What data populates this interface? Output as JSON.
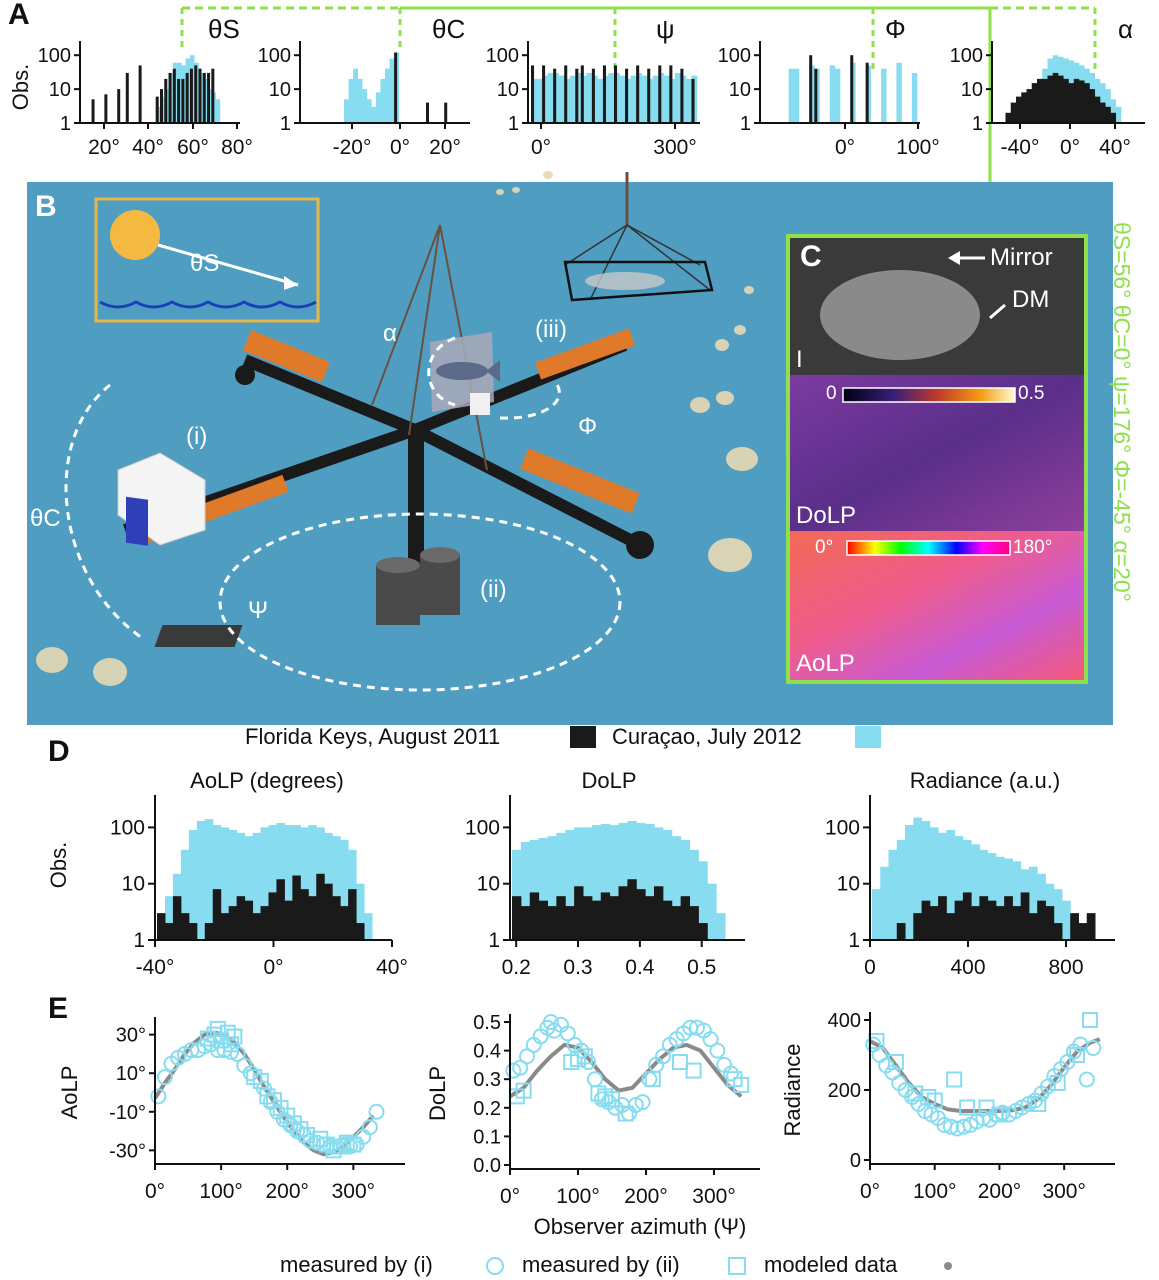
{
  "panel_letters": {
    "a": "A",
    "b": "B",
    "c": "C",
    "d": "D",
    "e": "E"
  },
  "colors": {
    "curacao": "#87dcf0",
    "florida": "#1a1a1a",
    "green": "#8ee04c",
    "water": "#4f9ec2",
    "orange": "#e07a2b",
    "model": "#8a8a8a",
    "inset_border": "#e8b648"
  },
  "panel_a": {
    "ylabel": "Obs.",
    "charts": [
      {
        "symbol": "θS",
        "ticks": [
          "20°",
          "40°",
          "60°",
          "80°"
        ]
      },
      {
        "symbol": "θC",
        "ticks": [
          "-20°",
          "0°",
          "20°"
        ]
      },
      {
        "symbol": "ψ",
        "ticks": [
          "0°",
          "300°"
        ]
      },
      {
        "symbol": "Φ",
        "ticks": [
          "0°",
          "100°"
        ]
      },
      {
        "symbol": "α",
        "ticks": [
          "-40°",
          "0°",
          "40°"
        ]
      }
    ],
    "yticks": [
      "100",
      "10",
      "1"
    ]
  },
  "panel_b": {
    "labels": {
      "theta_s": "θS",
      "theta_c": "θC",
      "psi": "Ψ",
      "phi": "Φ",
      "alpha": "α",
      "i": "(i)",
      "ii": "(ii)",
      "iii": "(iii)"
    }
  },
  "panel_c": {
    "labels": {
      "mirror": "Mirror",
      "dm": "DM",
      "i": "I",
      "dolp": "DoLP",
      "aolp": "AoLP"
    },
    "dolp_scale": [
      "0",
      "0.5"
    ],
    "aolp_scale": [
      "0°",
      "180°"
    ],
    "side_text": "θS=56° θC=0° ψ=176° Φ=-45° α=20°"
  },
  "panel_d": {
    "legend": {
      "florida": "Florida Keys, August 2011",
      "curacao": "Curaçao, July 2012"
    },
    "ylabel": "Obs.",
    "yticks": [
      "100",
      "10",
      "1"
    ],
    "charts": [
      {
        "title": "AoLP (degrees)",
        "ticks": [
          "-40°",
          "0°",
          "40°"
        ]
      },
      {
        "title": "DoLP",
        "ticks": [
          "0.2",
          "0.3",
          "0.4",
          "0.5"
        ]
      },
      {
        "title": "Radiance (a.u.)",
        "ticks": [
          "0",
          "400",
          "800"
        ]
      }
    ]
  },
  "panel_e": {
    "xlabel": "Observer azimuth (Ψ)",
    "legend": {
      "i": "measured by (i)",
      "ii": "measured by (ii)",
      "model": "modeled data"
    }
  },
  "chart_data": [
    {
      "type": "scatter",
      "id": "E-AoLP",
      "ylabel": "AoLP",
      "xlim": [
        0,
        360
      ],
      "ylim": [
        -35,
        35
      ],
      "xticks": [
        "0°",
        "100°",
        "200°",
        "300°"
      ],
      "yticks": [
        "30°",
        "10°",
        "-10°",
        "-30°"
      ],
      "series": [
        {
          "name": "measured by (i)",
          "x": [
            5,
            15,
            25,
            35,
            45,
            55,
            65,
            75,
            85,
            95,
            105,
            115,
            125,
            135,
            145,
            165,
            175,
            185,
            195,
            205,
            215,
            225,
            235,
            245,
            255,
            265,
            275,
            285,
            295,
            305,
            315,
            325,
            335
          ],
          "y": [
            -2,
            8,
            15,
            18,
            20,
            22,
            22,
            24,
            25,
            22,
            22,
            21,
            20,
            14,
            10,
            2,
            -5,
            -10,
            -14,
            -17,
            -20,
            -22,
            -25,
            -26,
            -27,
            -28,
            -28,
            -27,
            -28,
            -27,
            -23,
            -18,
            -10
          ]
        },
        {
          "name": "measured by (ii)",
          "x": [
            80,
            90,
            95,
            100,
            110,
            115,
            120,
            150,
            160,
            170,
            180,
            190,
            200,
            210,
            220,
            230,
            250,
            260,
            270,
            280,
            290,
            300
          ],
          "y": [
            28,
            30,
            33,
            27,
            31,
            25,
            29,
            8,
            6,
            -2,
            -4,
            -8,
            -12,
            -16,
            -19,
            -22,
            -24,
            -27,
            -30,
            -28,
            -26,
            -27
          ]
        },
        {
          "name": "modeled data",
          "x": [
            0,
            15,
            30,
            45,
            60,
            75,
            90,
            105,
            120,
            135,
            150,
            165,
            180,
            195,
            210,
            225,
            240,
            255,
            270,
            285,
            300,
            315,
            330
          ],
          "y": [
            -3,
            5,
            12,
            20,
            26,
            30,
            31,
            30,
            26,
            20,
            12,
            3,
            -5,
            -13,
            -20,
            -26,
            -30,
            -32,
            -31,
            -28,
            -23,
            -18,
            -12
          ]
        }
      ]
    },
    {
      "type": "scatter",
      "id": "E-DoLP",
      "ylabel": "DoLP",
      "xlim": [
        0,
        350
      ],
      "ylim": [
        0,
        0.5
      ],
      "xticks": [
        "0°",
        "100°",
        "200°",
        "300°"
      ],
      "yticks": [
        "0.5",
        "0.4",
        "0.3",
        "0.2",
        "0.1",
        "0.0"
      ],
      "series": [
        {
          "name": "measured by (i)",
          "x": [
            5,
            15,
            25,
            35,
            45,
            55,
            60,
            65,
            75,
            85,
            95,
            105,
            115,
            125,
            135,
            145,
            155,
            165,
            175,
            185,
            195,
            205,
            215,
            225,
            235,
            245,
            255,
            265,
            275,
            285,
            295,
            305,
            315,
            325
          ],
          "y": [
            0.33,
            0.34,
            0.38,
            0.42,
            0.45,
            0.48,
            0.5,
            0.47,
            0.49,
            0.46,
            0.42,
            0.4,
            0.36,
            0.3,
            0.23,
            0.22,
            0.2,
            0.21,
            0.18,
            0.21,
            0.22,
            0.3,
            0.35,
            0.38,
            0.42,
            0.44,
            0.46,
            0.48,
            0.48,
            0.47,
            0.44,
            0.4,
            0.35,
            0.32
          ]
        },
        {
          "name": "measured by (ii)",
          "x": [
            10,
            20,
            90,
            100,
            110,
            130,
            140,
            150,
            170,
            210,
            250,
            270,
            330,
            340
          ],
          "y": [
            0.24,
            0.26,
            0.36,
            0.37,
            0.38,
            0.25,
            0.24,
            0.23,
            0.18,
            0.3,
            0.36,
            0.33,
            0.3,
            0.28
          ]
        },
        {
          "name": "modeled data",
          "x": [
            0,
            20,
            40,
            60,
            80,
            100,
            120,
            140,
            160,
            180,
            200,
            220,
            240,
            260,
            280,
            300,
            320,
            340
          ],
          "y": [
            0.24,
            0.27,
            0.33,
            0.38,
            0.42,
            0.41,
            0.36,
            0.3,
            0.26,
            0.27,
            0.32,
            0.37,
            0.41,
            0.42,
            0.4,
            0.34,
            0.28,
            0.24
          ]
        }
      ]
    },
    {
      "type": "scatter",
      "id": "E-Radiance",
      "ylabel": "Radiance",
      "xlim": [
        0,
        360
      ],
      "ylim": [
        0,
        400
      ],
      "xticks": [
        "0°",
        "100°",
        "200°",
        "300°"
      ],
      "yticks": [
        "400",
        "200",
        "0"
      ],
      "series": [
        {
          "name": "measured by (i)",
          "x": [
            5,
            15,
            25,
            35,
            45,
            55,
            65,
            75,
            85,
            95,
            105,
            115,
            125,
            135,
            145,
            155,
            165,
            175,
            185,
            195,
            205,
            215,
            225,
            235,
            245,
            255,
            265,
            275,
            285,
            295,
            305,
            315,
            325,
            335,
            345
          ],
          "y": [
            330,
            300,
            270,
            250,
            220,
            200,
            180,
            160,
            140,
            130,
            120,
            100,
            95,
            90,
            95,
            100,
            110,
            120,
            115,
            130,
            135,
            130,
            140,
            150,
            160,
            170,
            190,
            210,
            240,
            260,
            280,
            310,
            330,
            230,
            320
          ]
        },
        {
          "name": "measured by (ii)",
          "x": [
            10,
            40,
            70,
            90,
            100,
            130,
            150,
            180,
            200,
            260,
            290,
            320,
            340
          ],
          "y": [
            340,
            280,
            190,
            180,
            170,
            230,
            150,
            150,
            130,
            160,
            220,
            300,
            400
          ]
        },
        {
          "name": "modeled data",
          "x": [
            0,
            20,
            40,
            60,
            80,
            100,
            120,
            140,
            160,
            180,
            200,
            220,
            240,
            260,
            280,
            300,
            320,
            340,
            355
          ],
          "y": [
            340,
            320,
            270,
            220,
            180,
            160,
            145,
            140,
            140,
            140,
            140,
            142,
            150,
            175,
            215,
            265,
            310,
            335,
            345
          ]
        }
      ]
    },
    {
      "type": "bar",
      "id": "D-AoLP",
      "xlim": [
        -40,
        40
      ],
      "ylim": [
        1,
        250
      ],
      "log_y": true,
      "series": [
        {
          "name": "Curaçao, July 2012",
          "values": [
            2,
            6,
            15,
            40,
            90,
            130,
            140,
            110,
            100,
            90,
            80,
            70,
            80,
            100,
            110,
            120,
            110,
            110,
            100,
            110,
            100,
            80,
            70,
            60,
            40,
            10,
            3
          ]
        },
        {
          "name": "Florida Keys, August 2011",
          "values": [
            3,
            2,
            6,
            3,
            2,
            1,
            2,
            8,
            3,
            4,
            6,
            5,
            3,
            4,
            7,
            12,
            5,
            14,
            8,
            6,
            15,
            10,
            6,
            4,
            8,
            2,
            1
          ]
        }
      ]
    },
    {
      "type": "bar",
      "id": "D-DoLP",
      "xlim": [
        0.19,
        0.57
      ],
      "ylim": [
        1,
        250
      ],
      "log_y": true,
      "series": [
        {
          "name": "Curaçao, July 2012",
          "values": [
            40,
            55,
            60,
            65,
            70,
            80,
            90,
            100,
            100,
            110,
            115,
            110,
            120,
            130,
            120,
            115,
            100,
            90,
            70,
            60,
            40,
            25,
            10,
            3
          ]
        },
        {
          "name": "Florida Keys, August 2011",
          "values": [
            6,
            4,
            7,
            5,
            4,
            6,
            4,
            9,
            6,
            5,
            7,
            6,
            9,
            12,
            8,
            6,
            9,
            5,
            4,
            6,
            4,
            2,
            1,
            1
          ]
        }
      ]
    },
    {
      "type": "bar",
      "id": "D-Radiance",
      "xlim": [
        0,
        1000
      ],
      "ylim": [
        1,
        250
      ],
      "log_y": true,
      "series": [
        {
          "name": "Curaçao, July 2012",
          "values": [
            8,
            20,
            40,
            60,
            110,
            150,
            130,
            100,
            80,
            90,
            70,
            60,
            50,
            40,
            35,
            30,
            28,
            25,
            18,
            20,
            15,
            10,
            8,
            5,
            2,
            1,
            1
          ]
        },
        {
          "name": "Florida Keys, August 2011",
          "values": [
            1,
            1,
            1,
            2,
            1,
            3,
            5,
            4,
            6,
            3,
            5,
            7,
            4,
            6,
            5,
            4,
            6,
            4,
            7,
            3,
            5,
            4,
            2,
            1,
            3,
            2,
            3
          ]
        }
      ]
    },
    {
      "type": "bar",
      "id": "A-hist",
      "log_y": true,
      "ylim": [
        1,
        200
      ],
      "series": [
        {
          "name": "panel A histograms",
          "values": []
        }
      ]
    }
  ]
}
